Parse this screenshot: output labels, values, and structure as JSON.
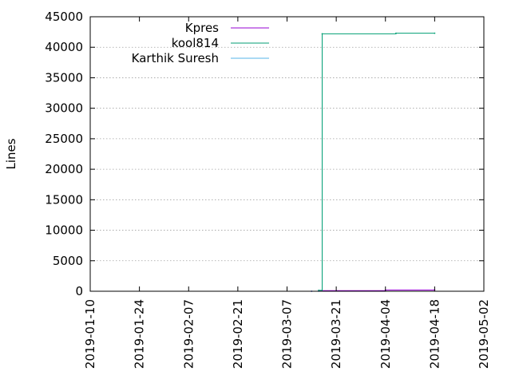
{
  "chart_data": {
    "type": "line",
    "title": "",
    "xlabel": "",
    "ylabel": "Lines",
    "ylim": [
      0,
      45000
    ],
    "xlim": [
      "2019-01-10",
      "2019-05-02"
    ],
    "x_ticks": [
      "2019-01-10",
      "2019-01-24",
      "2019-02-07",
      "2019-02-21",
      "2019-03-07",
      "2019-03-21",
      "2019-04-04",
      "2019-04-18",
      "2019-05-02"
    ],
    "y_ticks": [
      0,
      5000,
      10000,
      15000,
      20000,
      25000,
      30000,
      35000,
      40000,
      45000
    ],
    "grid": true,
    "legend_position": "top-left",
    "line_style": "steps",
    "series": [
      {
        "name": "Kpres",
        "color": "#9400d3",
        "points": [
          {
            "x": "2019-03-14",
            "y": 0
          },
          {
            "x": "2019-03-16",
            "y": 100
          },
          {
            "x": "2019-04-04",
            "y": 200
          },
          {
            "x": "2019-04-18",
            "y": 250
          }
        ]
      },
      {
        "name": "kool814",
        "color": "#009e73",
        "points": [
          {
            "x": "2019-03-16",
            "y": 150
          },
          {
            "x": "2019-03-17",
            "y": 42200
          },
          {
            "x": "2019-04-07",
            "y": 42300
          },
          {
            "x": "2019-04-18",
            "y": 42300
          }
        ]
      },
      {
        "name": "Karthik Suresh",
        "color": "#56b4e9",
        "points": [
          {
            "x": "2019-03-14",
            "y": 0
          },
          {
            "x": "2019-03-16",
            "y": 0
          }
        ]
      }
    ]
  }
}
